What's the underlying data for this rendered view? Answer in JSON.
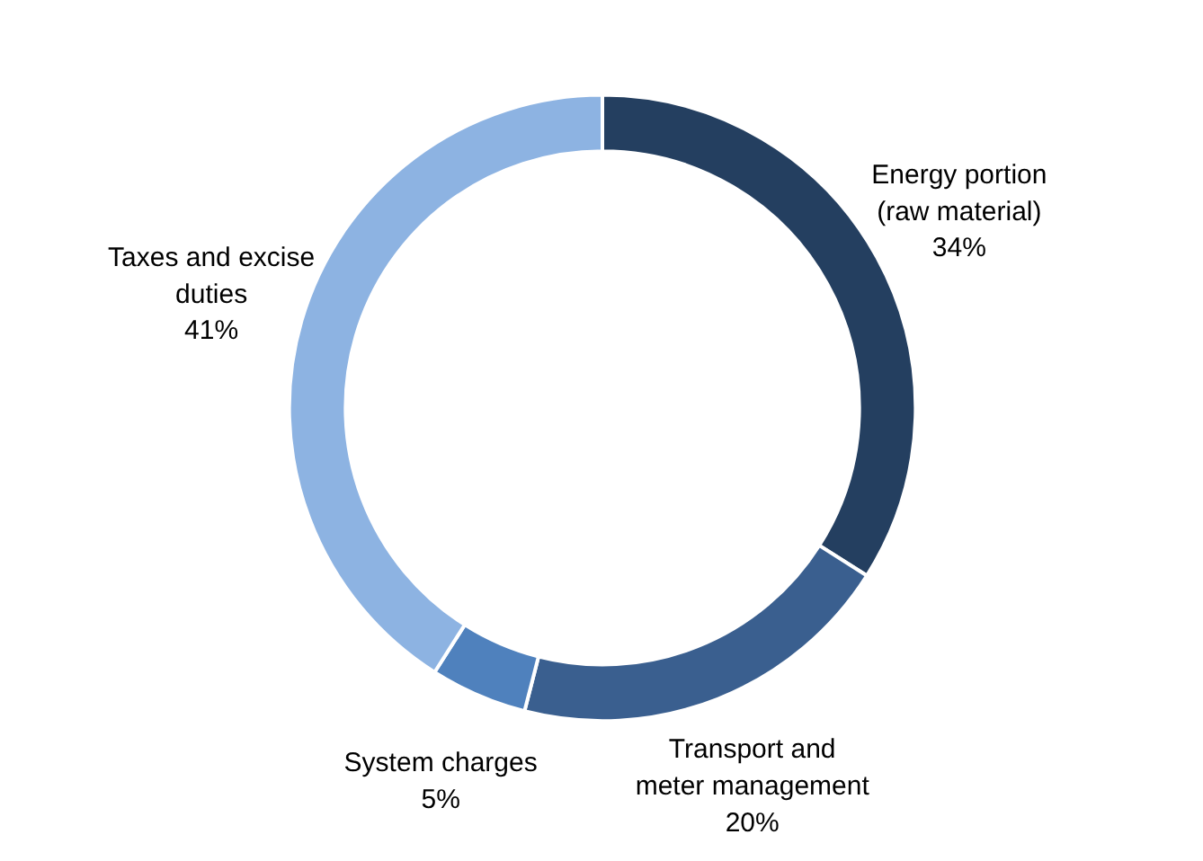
{
  "chart_data": {
    "type": "donut",
    "categories": [
      "Energy portion (raw material)",
      "Transport and meter management",
      "System charges",
      "Taxes and excise duties"
    ],
    "values": [
      34,
      20,
      5,
      41
    ],
    "value_labels": [
      "34%",
      "20%",
      "5%",
      "41%"
    ],
    "colors": [
      "#243f60",
      "#3a5f8f",
      "#4f81bd",
      "#8db3e2"
    ]
  }
}
